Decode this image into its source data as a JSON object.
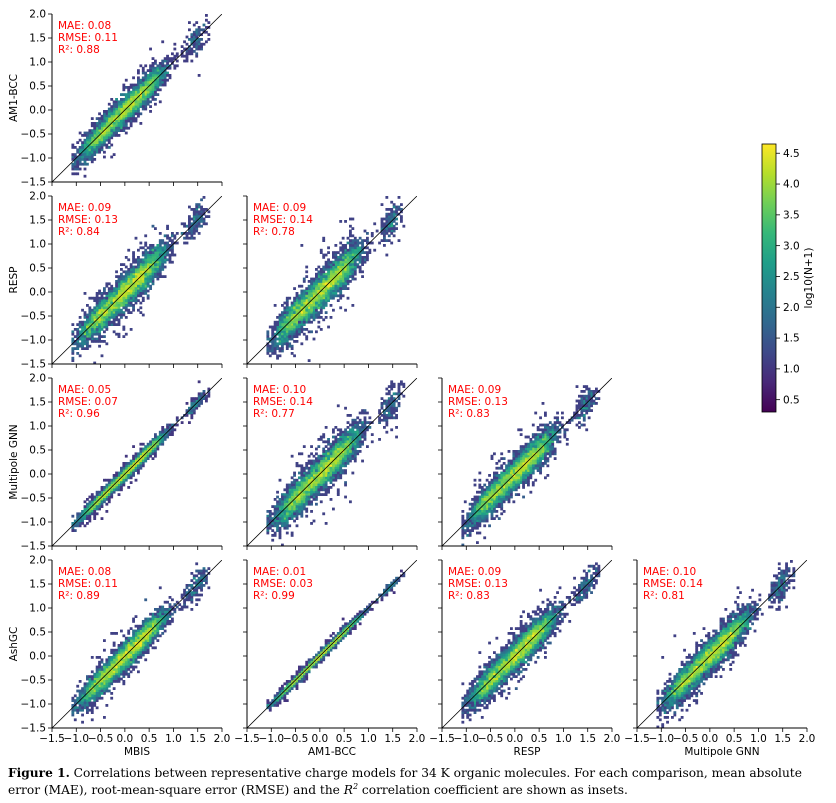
{
  "figure": {
    "models": [
      "MBIS",
      "AM1-BCC",
      "RESP",
      "Multipole GNN",
      "AshGC"
    ],
    "tick_values": [
      -1.5,
      -1.0,
      -0.5,
      0.0,
      0.5,
      1.0,
      1.5,
      2.0
    ],
    "tick_labels": [
      "−1.5",
      "−1.0",
      "−0.5",
      "0.0",
      "0.5",
      "1.0",
      "1.5",
      "2.0"
    ],
    "colorbar": {
      "label": "log10(N+1)",
      "ticks": [
        0.5,
        1.0,
        1.5,
        2.0,
        2.5,
        3.0,
        3.5,
        4.0,
        4.5
      ],
      "tick_labels": [
        "0.5",
        "1.0",
        "1.5",
        "2.0",
        "2.5",
        "3.0",
        "3.5",
        "4.0",
        "4.5"
      ],
      "range": [
        0.3,
        4.65
      ],
      "colors": [
        "#440154",
        "#482878",
        "#3e4989",
        "#31688e",
        "#26828e",
        "#1f9e89",
        "#35b779",
        "#6ece58",
        "#b5de2b",
        "#fde725"
      ]
    },
    "inset_color": "#ff0000"
  },
  "caption": {
    "label": "Figure 1.",
    "text_before": " Correlations between representative charge models for 34 K organic molecules. For each comparison, mean absolute error (MAE), root-mean-square error (RMSE) and the ",
    "r2_base": "R",
    "r2_sup": "2",
    "text_after": " correlation coefficient are shown as insets."
  },
  "chart_data": {
    "type": "heatmap",
    "description_axes": "pairwise 2D histogram grid (lower triangle), identity line y = x",
    "xlim": [
      -1.5,
      2.0
    ],
    "ylim": [
      -1.5,
      2.0
    ],
    "panels": [
      {
        "row": 0,
        "col": 0,
        "xlabel": "MBIS",
        "ylabel": "AM1-BCC",
        "mae": "MAE: 0.08",
        "rmse": "RMSE: 0.11",
        "r2": "R²: 0.88",
        "spread": 0.13
      },
      {
        "row": 1,
        "col": 0,
        "xlabel": "MBIS",
        "ylabel": "RESP",
        "mae": "MAE: 0.09",
        "rmse": "RMSE: 0.13",
        "r2": "R²: 0.84",
        "spread": 0.16
      },
      {
        "row": 1,
        "col": 1,
        "xlabel": "AM1-BCC",
        "ylabel": "RESP",
        "mae": "MAE: 0.09",
        "rmse": "RMSE: 0.14",
        "r2": "R²: 0.78",
        "spread": 0.17
      },
      {
        "row": 2,
        "col": 0,
        "xlabel": "MBIS",
        "ylabel": "Multipole GNN",
        "mae": "MAE: 0.05",
        "rmse": "RMSE: 0.07",
        "r2": "R²: 0.96",
        "spread": 0.06
      },
      {
        "row": 2,
        "col": 1,
        "xlabel": "AM1-BCC",
        "ylabel": "Multipole GNN",
        "mae": "MAE: 0.10",
        "rmse": "RMSE: 0.14",
        "r2": "R²: 0.77",
        "spread": 0.17
      },
      {
        "row": 2,
        "col": 2,
        "xlabel": "RESP",
        "ylabel": "Multipole GNN",
        "mae": "MAE: 0.09",
        "rmse": "RMSE: 0.13",
        "r2": "R²: 0.83",
        "spread": 0.15
      },
      {
        "row": 3,
        "col": 0,
        "xlabel": "MBIS",
        "ylabel": "AshGC",
        "mae": "MAE: 0.08",
        "rmse": "RMSE: 0.11",
        "r2": "R²: 0.89",
        "spread": 0.13
      },
      {
        "row": 3,
        "col": 1,
        "xlabel": "AM1-BCC",
        "ylabel": "AshGC",
        "mae": "MAE: 0.01",
        "rmse": "RMSE: 0.03",
        "r2": "R²: 0.99",
        "spread": 0.035
      },
      {
        "row": 3,
        "col": 2,
        "xlabel": "RESP",
        "ylabel": "AshGC",
        "mae": "MAE: 0.09",
        "rmse": "RMSE: 0.13",
        "r2": "R²: 0.83",
        "spread": 0.15
      },
      {
        "row": 3,
        "col": 3,
        "xlabel": "Multipole GNN",
        "ylabel": "AshGC",
        "mae": "MAE: 0.10",
        "rmse": "RMSE: 0.14",
        "r2": "R²: 0.81",
        "spread": 0.15
      }
    ]
  }
}
